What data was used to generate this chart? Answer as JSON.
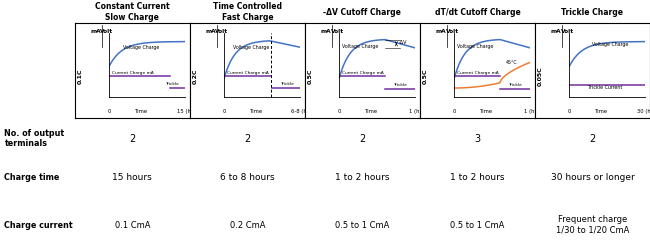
{
  "columns": [
    {
      "header": "Constant Current\nSlow Charge",
      "ylabel_left": "0.1C",
      "xlabel": "Time",
      "xmax_label": "15 (h)",
      "curve_type": "slow_rise_flat",
      "is_trickle_only": false,
      "has_dashed": false,
      "has_delta_v": false,
      "has_temp": false,
      "terminals": "2",
      "charge_time": "15 hours",
      "charge_current": "0.1 CmA"
    },
    {
      "header": "Time Controlled\nFast Charge",
      "ylabel_left": "0.2C",
      "xlabel": "Time",
      "xmax_label": "6-8 (h)",
      "curve_type": "rise_peak_fall",
      "is_trickle_only": false,
      "has_dashed": true,
      "has_delta_v": false,
      "has_temp": false,
      "terminals": "2",
      "charge_time": "6 to 8 hours",
      "charge_current": "0.2 CmA"
    },
    {
      "header": "-ΔV Cutoff Charge",
      "ylabel_left": "0.5C",
      "xlabel": "Time",
      "xmax_label": "1 (h)",
      "curve_type": "rise_peak_drop",
      "is_trickle_only": false,
      "has_dashed": false,
      "has_delta_v": true,
      "has_temp": false,
      "terminals": "2",
      "charge_time": "1 to 2 hours",
      "charge_current": "0.5 to 1 CmA"
    },
    {
      "header": "dT/dt Cutoff Charge",
      "ylabel_left": "0.5C",
      "xlabel": "Time",
      "xmax_label": "1 (h)",
      "curve_type": "rise_peak_drop",
      "is_trickle_only": false,
      "has_dashed": false,
      "has_delta_v": false,
      "has_temp": true,
      "terminals": "3",
      "charge_time": "1 to 2 hours",
      "charge_current": "0.5 to 1 CmA"
    },
    {
      "header": "Trickle Charge",
      "ylabel_left": "0.05C",
      "xlabel": "Time",
      "xmax_label": "30 (h)",
      "curve_type": "slow_rise_flat",
      "is_trickle_only": true,
      "has_dashed": false,
      "has_delta_v": false,
      "has_temp": false,
      "terminals": "2",
      "charge_time": "30 hours or longer",
      "charge_current": "Frequent charge\n1/30 to 1/20 CmA"
    }
  ],
  "row_labels": [
    "No. of output\nterminals",
    "Charge time",
    "Charge current"
  ],
  "bg_color": "#ffffff",
  "border_color": "#000000",
  "voltage_color": "#4472c4",
  "current_color": "#7030a0",
  "trickle_color": "#7030a0",
  "temp_color": "#ed7d31"
}
